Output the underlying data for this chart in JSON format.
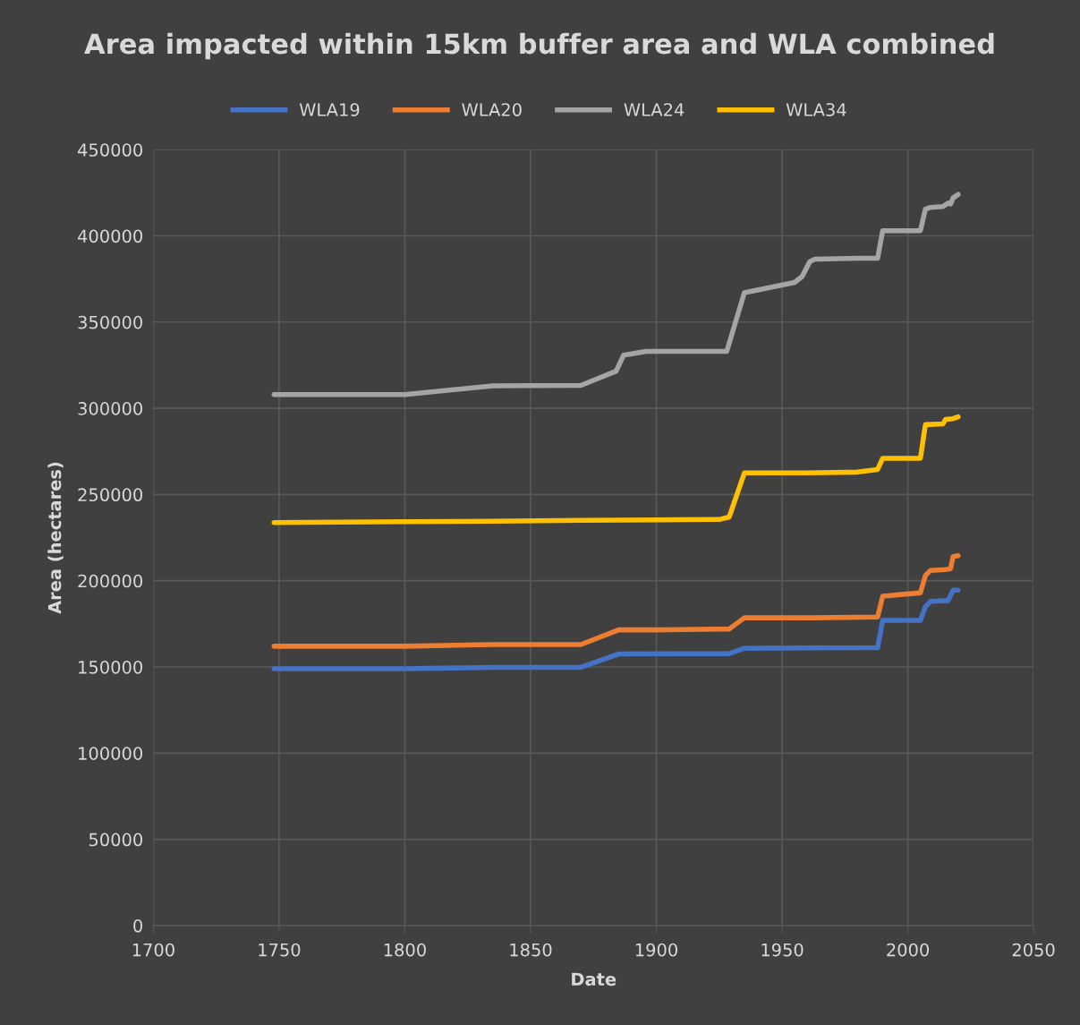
{
  "chart_data": {
    "type": "line",
    "title": "Area impacted within 15km buffer area and WLA combined",
    "xlabel": "Date",
    "ylabel": "Area (hectares)",
    "xlim": [
      1700,
      2050
    ],
    "xticks": [
      1700,
      1750,
      1800,
      1850,
      1900,
      1950,
      2000,
      2050
    ],
    "ylim": [
      0,
      450000
    ],
    "yticks": [
      0,
      50000,
      100000,
      150000,
      200000,
      250000,
      300000,
      350000,
      400000,
      450000
    ],
    "grid": true,
    "legend": "top",
    "marker": "none",
    "line_style": "solid",
    "series": [
      {
        "name": "WLA19",
        "color": "#4472c4",
        "x": [
          1748,
          1800,
          1835,
          1870,
          1885,
          1929,
          1935,
          1960,
          1988,
          1990,
          2005,
          2007,
          2009,
          2016,
          2018,
          2020
        ],
        "values": [
          149000,
          149000,
          149700,
          149800,
          157500,
          157700,
          160800,
          161000,
          161200,
          177000,
          177000,
          185000,
          188000,
          188500,
          194500,
          194500
        ]
      },
      {
        "name": "WLA20",
        "color": "#ed7d31",
        "x": [
          1748,
          1800,
          1835,
          1870,
          1885,
          1900,
          1929,
          1935,
          1962,
          1988,
          1990,
          2005,
          2007,
          2009,
          2015,
          2017,
          2018,
          2020
        ],
        "values": [
          162000,
          162000,
          163000,
          163000,
          171500,
          171500,
          172000,
          178500,
          178500,
          179000,
          191000,
          193000,
          203000,
          206000,
          206500,
          207000,
          214000,
          214500
        ]
      },
      {
        "name": "WLA24",
        "color": "#a5a5a5",
        "x": [
          1748,
          1800,
          1835,
          1870,
          1884,
          1887,
          1896,
          1928,
          1935,
          1955,
          1958,
          1961,
          1963,
          1980,
          1988,
          1990,
          2005,
          2007,
          2009,
          2014,
          2016,
          2017,
          2018,
          2020
        ],
        "values": [
          308000,
          308000,
          313000,
          313300,
          321500,
          330800,
          333000,
          333000,
          367000,
          373000,
          376500,
          385000,
          386500,
          387000,
          387000,
          403000,
          403000,
          415500,
          416500,
          417000,
          419000,
          418500,
          422000,
          424000
        ]
      },
      {
        "name": "WLA34",
        "color": "#ffc000",
        "x": [
          1748,
          1800,
          1835,
          1870,
          1900,
          1925,
          1929,
          1935,
          1960,
          1980,
          1988,
          1990,
          2005,
          2007,
          2014,
          2015,
          2018,
          2020
        ],
        "values": [
          233700,
          234200,
          234500,
          235000,
          235300,
          235500,
          237000,
          262500,
          262500,
          263000,
          264500,
          271000,
          271000,
          290500,
          291000,
          293500,
          294000,
          295000
        ]
      }
    ]
  }
}
